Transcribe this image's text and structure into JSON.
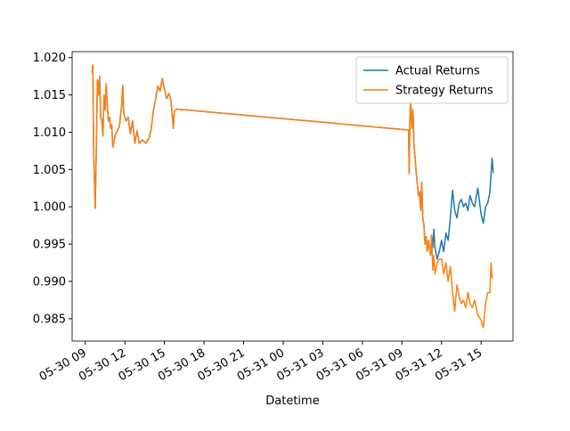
{
  "chart_data": {
    "type": "line",
    "xlabel": "Datetime",
    "x": [
      "05-30 09:30",
      "05-30 09:34",
      "05-30 09:38",
      "05-30 09:45",
      "05-30 09:50",
      "05-30 09:55",
      "05-30 10:00",
      "05-30 10:05",
      "05-30 10:10",
      "05-30 10:15",
      "05-30 10:20",
      "05-30 10:25",
      "05-30 10:30",
      "05-30 10:35",
      "05-30 10:40",
      "05-30 10:45",
      "05-30 10:50",
      "05-30 10:55",
      "05-30 11:00",
      "05-30 11:05",
      "05-30 11:15",
      "05-30 11:25",
      "05-30 11:35",
      "05-30 11:45",
      "05-30 11:50",
      "05-30 11:55",
      "05-30 12:05",
      "05-30 12:15",
      "05-30 12:25",
      "05-30 12:35",
      "05-30 12:45",
      "05-30 12:55",
      "05-30 13:05",
      "05-30 13:20",
      "05-30 13:35",
      "05-30 13:50",
      "05-30 14:00",
      "05-30 14:10",
      "05-30 14:20",
      "05-30 14:30",
      "05-30 14:40",
      "05-30 14:50",
      "05-30 15:00",
      "05-30 15:10",
      "05-30 15:20",
      "05-30 15:30",
      "05-30 15:40",
      "05-30 15:45",
      "05-30 15:55",
      "05-31 09:30",
      "05-31 09:33",
      "05-31 09:36",
      "05-31 09:40",
      "05-31 09:45",
      "05-31 09:50",
      "05-31 09:55",
      "05-31 10:00",
      "05-31 10:05",
      "05-31 10:10",
      "05-31 10:15",
      "05-31 10:20",
      "05-31 10:25",
      "05-31 10:30",
      "05-31 10:35",
      "05-31 10:40",
      "05-31 10:45",
      "05-31 10:50",
      "05-31 10:55",
      "05-31 11:00",
      "05-31 11:10",
      "05-31 11:15",
      "05-31 11:20",
      "05-31 11:25",
      "05-31 11:30",
      "05-31 11:40",
      "05-31 11:50",
      "05-31 12:00",
      "05-31 12:10",
      "05-31 12:20",
      "05-31 12:30",
      "05-31 12:40",
      "05-31 12:50",
      "05-31 13:00",
      "05-31 13:10",
      "05-31 13:20",
      "05-31 13:30",
      "05-31 13:40",
      "05-31 13:50",
      "05-31 14:00",
      "05-31 14:10",
      "05-31 14:20",
      "05-31 14:30",
      "05-31 14:45",
      "05-31 15:00",
      "05-31 15:10",
      "05-31 15:20",
      "05-31 15:30",
      "05-31 15:40",
      "05-31 15:45",
      "05-31 15:50",
      "05-31 15:55"
    ],
    "series": [
      {
        "name": "Actual Returns",
        "color": "#1f77b4",
        "values": [
          1.018,
          1.019,
          1.007,
          0.9998,
          1.008,
          1.017,
          1.015,
          1.0175,
          1.012,
          1.0115,
          1.0095,
          1.015,
          1.013,
          1.0165,
          1.0135,
          1.0115,
          1.012,
          1.0105,
          1.011,
          1.008,
          1.0095,
          1.0102,
          1.0108,
          1.0135,
          1.0163,
          1.0125,
          1.0115,
          1.012,
          1.0098,
          1.0115,
          1.0085,
          1.0102,
          1.0085,
          1.009,
          1.0085,
          1.0092,
          1.0105,
          1.013,
          1.0145,
          1.0162,
          1.0155,
          1.0172,
          1.0158,
          1.0145,
          1.0152,
          1.0142,
          1.0105,
          1.0128,
          1.0131,
          1.0103,
          1.0045,
          1.012,
          1.014,
          1.0105,
          1.013,
          1.008,
          1.0065,
          1.0045,
          1.003,
          1.0015,
          1.002,
          0.9995,
          1.0033,
          0.9985,
          0.9975,
          0.995,
          0.996,
          0.994,
          0.9955,
          0.9935,
          0.9962,
          0.9945,
          0.997,
          0.9945,
          0.993,
          0.994,
          0.9955,
          0.994,
          0.9965,
          0.9955,
          0.9985,
          1.0022,
          0.9995,
          0.9985,
          1.0005,
          1.001,
          1.0,
          1.0005,
          0.9995,
          1.0015,
          1.0005,
          1.0,
          1.0025,
          0.999,
          0.9978,
          1.0,
          1.0005,
          1.002,
          1.0045,
          1.0065,
          1.0045
        ]
      },
      {
        "name": "Strategy Returns",
        "color": "#ff7f0e",
        "values": [
          1.018,
          1.019,
          1.007,
          0.9998,
          1.008,
          1.017,
          1.015,
          1.0175,
          1.012,
          1.0115,
          1.0095,
          1.015,
          1.013,
          1.0165,
          1.0135,
          1.0115,
          1.012,
          1.0105,
          1.011,
          1.008,
          1.0095,
          1.0102,
          1.0108,
          1.0135,
          1.0163,
          1.0125,
          1.0115,
          1.012,
          1.0098,
          1.0115,
          1.0085,
          1.0102,
          1.0085,
          1.009,
          1.0085,
          1.0092,
          1.0105,
          1.013,
          1.0145,
          1.0162,
          1.0155,
          1.0172,
          1.0158,
          1.0145,
          1.0152,
          1.0142,
          1.0105,
          1.0128,
          1.0131,
          1.0103,
          1.0045,
          1.012,
          1.014,
          1.0105,
          1.013,
          1.008,
          1.0065,
          1.0045,
          1.003,
          1.0015,
          1.002,
          0.9995,
          1.0033,
          0.9985,
          0.9975,
          0.995,
          0.996,
          0.994,
          0.9955,
          0.9935,
          0.9962,
          0.9915,
          0.9935,
          0.991,
          0.9925,
          0.993,
          0.993,
          0.991,
          0.9925,
          0.99,
          0.992,
          0.9885,
          0.986,
          0.9895,
          0.988,
          0.987,
          0.9875,
          0.9865,
          0.9885,
          0.987,
          0.9865,
          0.9875,
          0.9855,
          0.9848,
          0.9838,
          0.987,
          0.9885,
          0.9885,
          0.9925,
          0.9905,
          0.9905
        ]
      }
    ],
    "xlim": [
      "05-30 08:00",
      "05-31 17:25"
    ],
    "xticks": [
      "05-30 09",
      "05-30 12",
      "05-30 15",
      "05-30 18",
      "05-30 21",
      "05-31 00",
      "05-31 03",
      "05-31 06",
      "05-31 09",
      "05-31 12",
      "05-31 15"
    ],
    "ylim": [
      0.982,
      1.0208
    ],
    "yticks": [
      0.985,
      {
        "value": 0.99,
        "label": "0.990"
      },
      0.995,
      {
        "value": 1.0,
        "label": "1.000"
      },
      1.005,
      {
        "value": 1.01,
        "label": "1.010"
      },
      1.015,
      {
        "value": 1.02,
        "label": "1.020"
      }
    ],
    "legend": "upper right"
  }
}
